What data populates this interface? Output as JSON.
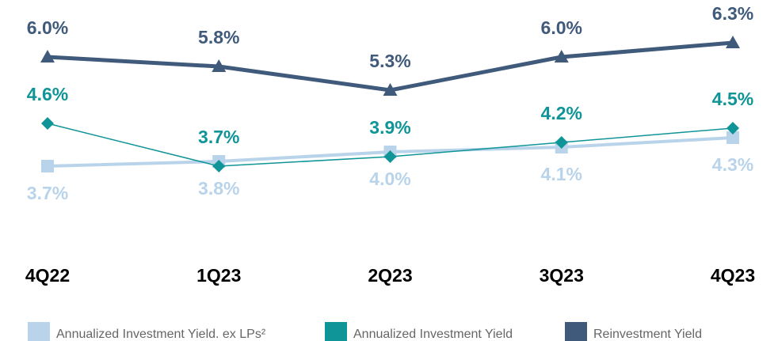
{
  "chart_data": {
    "type": "line",
    "categories": [
      "4Q22",
      "1Q23",
      "2Q23",
      "3Q23",
      "4Q23"
    ],
    "ylim": [
      3,
      6.5
    ],
    "series": [
      {
        "name": "Annualized Investment Yield. ex LPs²",
        "color": "#b9d4ea",
        "marker": "square",
        "label_side": "below",
        "values": [
          3.7,
          3.8,
          4.0,
          4.1,
          4.3
        ],
        "value_labels": [
          "3.7%",
          "3.8%",
          "4.0%",
          "4.1%",
          "4.3%"
        ]
      },
      {
        "name": "Annualized Investment Yield",
        "color": "#0f9497",
        "marker": "diamond",
        "label_side": "above",
        "values": [
          4.6,
          3.7,
          3.9,
          4.2,
          4.5
        ],
        "value_labels": [
          "4.6%",
          "3.7%",
          "3.9%",
          "4.2%",
          "4.5%"
        ]
      },
      {
        "name": "Reinvestment Yield",
        "color": "#3f5a7a",
        "marker": "triangle",
        "label_side": "above",
        "values": [
          6.0,
          5.8,
          5.3,
          6.0,
          6.3
        ],
        "value_labels": [
          "6.0%",
          "5.8%",
          "5.3%",
          "6.0%",
          "6.3%"
        ]
      }
    ],
    "legend": "bottom"
  }
}
